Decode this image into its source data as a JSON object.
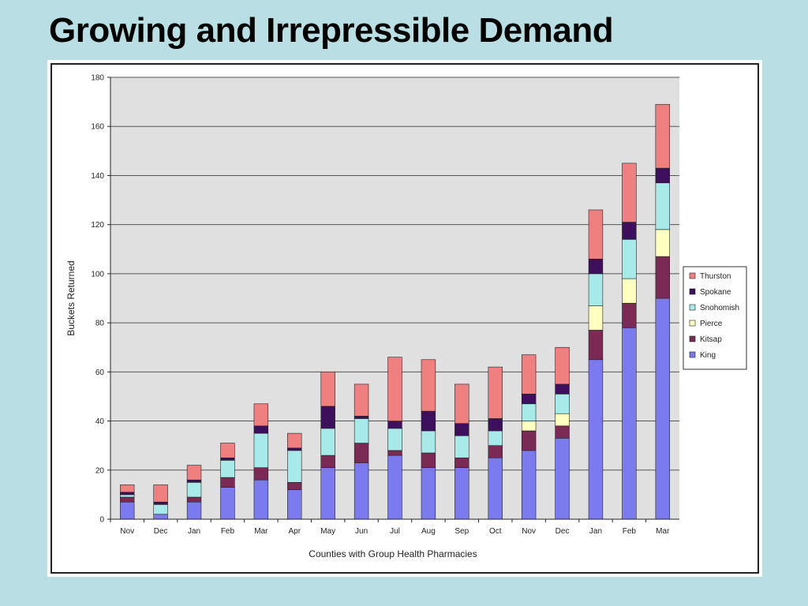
{
  "slide": {
    "title": "Growing and Irrepressible Demand"
  },
  "colors": {
    "background": "#b9dfe4",
    "plot_area": "#e0e0e0",
    "gridline": "#555555"
  },
  "chart_data": {
    "type": "bar",
    "stacked": true,
    "title": "",
    "xlabel": "Counties with Group Health Pharmacies",
    "ylabel": "Buckets Returned",
    "ylim": [
      0,
      180
    ],
    "yticks": [
      0,
      20,
      40,
      60,
      80,
      100,
      120,
      140,
      160,
      180
    ],
    "grid": true,
    "legend_position": "right",
    "categories": [
      "Nov",
      "Dec",
      "Jan",
      "Feb",
      "Mar",
      "Apr",
      "May",
      "Jun",
      "Jul",
      "Aug",
      "Sep",
      "Oct",
      "Nov",
      "Dec",
      "Jan",
      "Feb",
      "Mar"
    ],
    "series": [
      {
        "name": "King",
        "color": "#7b7bef",
        "values": [
          7,
          2,
          7,
          13,
          16,
          12,
          21,
          23,
          26,
          21,
          21,
          25,
          28,
          33,
          65,
          78,
          90
        ]
      },
      {
        "name": "Kitsap",
        "color": "#7b2a55",
        "values": [
          2,
          0,
          2,
          4,
          5,
          3,
          5,
          8,
          2,
          6,
          4,
          5,
          8,
          5,
          12,
          10,
          17
        ]
      },
      {
        "name": "Pierce",
        "color": "#ffffc0",
        "values": [
          0,
          0,
          0,
          0,
          0,
          0,
          0,
          0,
          0,
          0,
          0,
          0,
          4,
          5,
          10,
          10,
          11
        ]
      },
      {
        "name": "Snohomish",
        "color": "#a8eaea",
        "values": [
          1,
          4,
          6,
          7,
          14,
          13,
          11,
          10,
          9,
          9,
          9,
          6,
          7,
          8,
          13,
          16,
          19
        ]
      },
      {
        "name": "Spokane",
        "color": "#3d0f5c",
        "values": [
          1,
          1,
          1,
          1,
          3,
          1,
          9,
          1,
          3,
          8,
          5,
          5,
          4,
          4,
          6,
          7,
          6
        ]
      },
      {
        "name": "Thurston",
        "color": "#f08080",
        "values": [
          3,
          7,
          6,
          6,
          9,
          6,
          14,
          13,
          26,
          21,
          16,
          21,
          16,
          15,
          20,
          24,
          26
        ]
      }
    ]
  }
}
